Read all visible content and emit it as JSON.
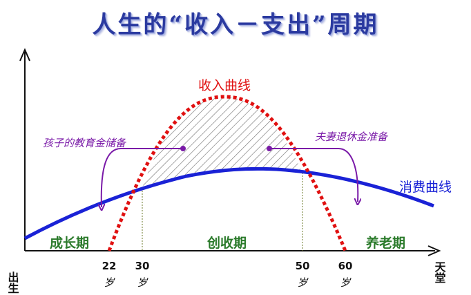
{
  "title": "人生的“收入－支出”周期",
  "curves": {
    "income": {
      "label": "收入曲线",
      "color": "#e01010"
    },
    "consumption": {
      "label": "消费曲线",
      "color": "#1a22d6"
    }
  },
  "annotations": {
    "children_education": "孩子的教育金储备",
    "retirement": "夫妻退休金准备"
  },
  "phases": {
    "growth": "成长期",
    "earning": "创收期",
    "retirement": "养老期"
  },
  "axis": {
    "start_label": "出生",
    "end_label": "天堂",
    "ages": [
      {
        "value": "22",
        "unit": "岁"
      },
      {
        "value": "30",
        "unit": "岁"
      },
      {
        "value": "50",
        "unit": "岁"
      },
      {
        "value": "60",
        "unit": "岁"
      }
    ]
  },
  "colors": {
    "title": "#2b3aa0",
    "annotation": "#7a1aa8",
    "phase": "#2a7a2a",
    "axis": "#111111"
  }
}
